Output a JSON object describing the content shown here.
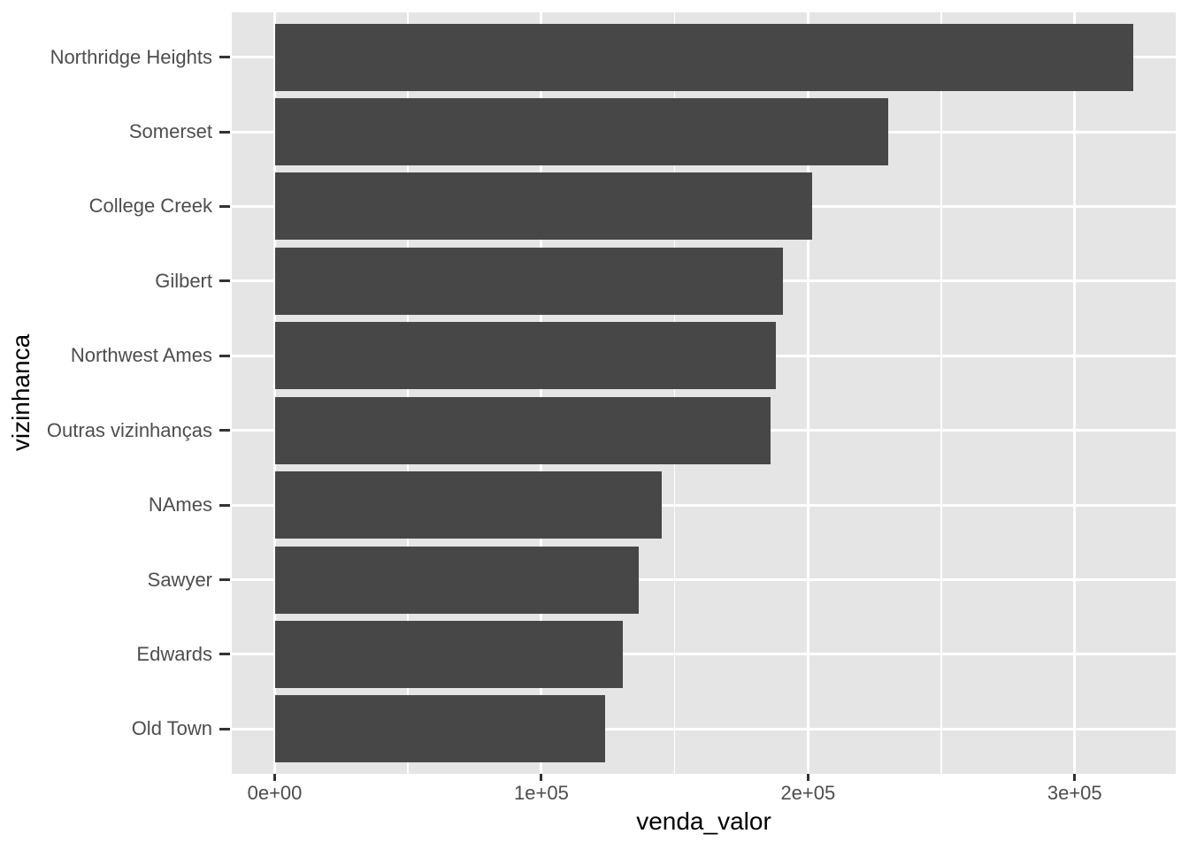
{
  "chart_data": {
    "type": "bar",
    "orientation": "horizontal",
    "title": "",
    "xlabel": "venda_valor",
    "ylabel": "vizinhanca",
    "categories": [
      "Northridge Heights",
      "Somerset",
      "College Creek",
      "Gilbert",
      "Northwest Ames",
      "Outras vizinhanças",
      "NAmes",
      "Sawyer",
      "Edwards",
      "Old Town"
    ],
    "values": [
      322000,
      230000,
      201500,
      190500,
      188000,
      186000,
      145000,
      136500,
      130500,
      124000
    ],
    "x_ticks": {
      "values": [
        0,
        100000,
        200000,
        300000
      ],
      "labels": [
        "0e+00",
        "1e+05",
        "2e+05",
        "3e+05"
      ]
    },
    "x_minor_ticks": [
      50000,
      150000,
      250000
    ],
    "x_domain": [
      -16100,
      337900
    ],
    "grid": true,
    "legend_position": "none",
    "bar_fill": "#474747",
    "panel_bg": "#E5E5E5",
    "grid_color": "#FFFFFF",
    "axis_text_color": "#4D4D4D",
    "tick_mark_color": "#333333",
    "title_color": "#000000"
  }
}
